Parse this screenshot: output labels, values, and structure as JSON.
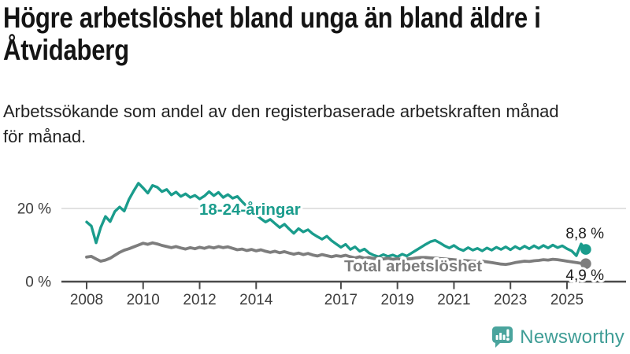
{
  "header": {
    "title_line1": "Högre arbetslöshet bland unga än bland äldre i",
    "title_line2": "Åtvidaberg",
    "subtitle_line1": "Arbetssökande som andel av den registerbaserade arbetskraften månad",
    "subtitle_line2": "för månad."
  },
  "chart_data": {
    "type": "line",
    "title": "Högre arbetslöshet bland unga än bland äldre i Åtvidaberg",
    "subtitle": "Arbetssökande som andel av den registerbaserade arbetskraften månad för månad.",
    "x_unit": "year-month",
    "x_start_year": 2008,
    "x_step_years": 0.1666667,
    "x_end_year": 2025.67,
    "x_ticks": [
      2008,
      2010,
      2012,
      2014,
      2017,
      2019,
      2021,
      2023,
      2025
    ],
    "y_ticks": [
      {
        "value": 0,
        "label": "0 %"
      },
      {
        "value": 20,
        "label": "20 %"
      }
    ],
    "ylim": [
      0,
      30
    ],
    "grid": "single-horizontal-line-at-20",
    "legend": "inline-series-labels",
    "series": [
      {
        "name": "18-24-åringar",
        "color": "#1a9c8c",
        "end_label": "8,8 %",
        "last_value": 8.8,
        "values": [
          16.3,
          15.2,
          10.6,
          14.8,
          17.8,
          16.4,
          19.2,
          20.4,
          19.3,
          22.5,
          24.8,
          26.9,
          25.6,
          24.2,
          26.3,
          25.8,
          24.6,
          25.2,
          23.7,
          24.5,
          23.3,
          24.0,
          23.0,
          23.6,
          22.6,
          23.4,
          24.6,
          23.5,
          24.4,
          23.0,
          23.8,
          22.8,
          23.3,
          21.9,
          20.6,
          19.4,
          18.3,
          17.2,
          16.3,
          17.0,
          15.9,
          14.8,
          15.7,
          14.4,
          13.2,
          14.5,
          13.6,
          14.2,
          13.1,
          12.3,
          11.6,
          12.4,
          11.2,
          10.3,
          9.4,
          10.2,
          8.8,
          9.5,
          8.3,
          8.9,
          7.8,
          7.2,
          6.8,
          7.4,
          6.9,
          7.3,
          6.8,
          7.5,
          7.0,
          7.8,
          8.6,
          9.4,
          10.2,
          10.9,
          11.3,
          10.6,
          9.8,
          9.2,
          9.9,
          9.0,
          8.5,
          9.3,
          8.6,
          9.1,
          8.4,
          9.2,
          8.6,
          9.4,
          8.8,
          9.5,
          8.7,
          9.6,
          8.9,
          9.7,
          9.0,
          9.8,
          9.1,
          9.9,
          9.2,
          10.0,
          9.3,
          9.8,
          9.0,
          8.4,
          7.1,
          10.3,
          8.8
        ]
      },
      {
        "name": "Total arbetslöshet",
        "color": "#7d7d7d",
        "end_label": "4,9 %",
        "last_value": 4.9,
        "values": [
          6.7,
          6.9,
          6.2,
          5.6,
          5.9,
          6.4,
          7.2,
          8.0,
          8.6,
          9.0,
          9.5,
          10.0,
          10.5,
          10.2,
          10.6,
          10.3,
          9.9,
          9.6,
          9.3,
          9.6,
          9.2,
          8.9,
          9.3,
          9.0,
          9.4,
          9.1,
          9.5,
          9.2,
          9.6,
          9.3,
          9.5,
          9.1,
          8.7,
          8.9,
          8.5,
          8.8,
          8.4,
          8.7,
          8.3,
          8.0,
          8.3,
          7.9,
          8.2,
          7.8,
          7.5,
          7.8,
          7.4,
          7.7,
          7.3,
          7.0,
          7.4,
          7.1,
          6.8,
          7.1,
          6.9,
          7.2,
          6.8,
          6.5,
          6.8,
          6.4,
          6.6,
          6.3,
          6.5,
          6.2,
          6.4,
          6.1,
          6.3,
          6.0,
          6.2,
          6.3,
          6.5,
          6.6,
          6.6,
          6.5,
          6.4,
          6.3,
          6.2,
          6.1,
          6.0,
          5.9,
          5.8,
          5.7,
          5.6,
          5.5,
          5.6,
          5.4,
          5.2,
          5.0,
          4.8,
          4.7,
          4.9,
          5.2,
          5.4,
          5.6,
          5.5,
          5.7,
          5.8,
          6.0,
          5.9,
          6.1,
          6.0,
          5.8,
          5.6,
          5.4,
          5.2,
          5.0,
          4.9
        ]
      }
    ]
  },
  "colors": {
    "teal_series": "#1a9c8c",
    "gray_series": "#7d7d7d",
    "axis": "#4a4a4a",
    "gridline": "#d9d9d9",
    "tick_label": "#3d3d3d",
    "value_label": "#1a1a1a",
    "brand_teal": "#3f9d96",
    "logo_fill": "#4aa49d"
  },
  "footer": {
    "brand_name": "Newsworthy",
    "logo_icon": "newsworthy-speech-bubble-bar-chart-icon"
  }
}
